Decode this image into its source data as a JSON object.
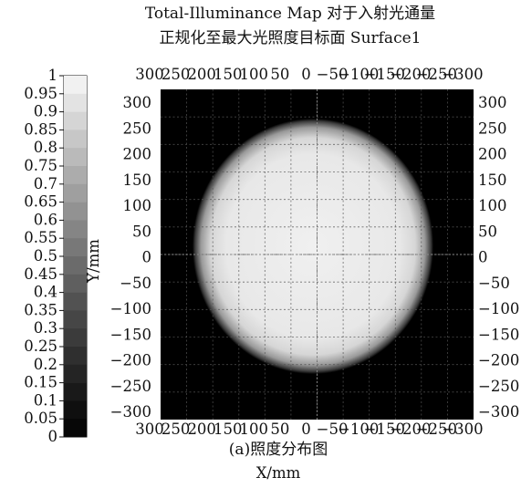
{
  "chart_data": {
    "type": "heatmap",
    "title_lines": [
      "Total-Illuminance Map 对于入射光通量",
      "正规化至最大光照度目标面 Surface1"
    ],
    "caption": "(a)照度分布图",
    "xlabel": "X/mm",
    "ylabel": "Y/mm",
    "x_range": [
      300,
      -300
    ],
    "y_range": [
      -300,
      300
    ],
    "x_ticks": [
      "300",
      "250",
      "200",
      "150",
      "100",
      "50",
      "0",
      "−50",
      "−100",
      "−150",
      "−200",
      "−250",
      "−300"
    ],
    "y_ticks": [
      "300",
      "250",
      "200",
      "150",
      "100",
      "50",
      "0",
      "−50",
      "−100",
      "−150",
      "−200",
      "−250",
      "−300"
    ],
    "colorbar": {
      "min": 0,
      "max": 1,
      "ticks": [
        "1",
        "0.95",
        "0.9",
        "0.85",
        "0.8",
        "0.75",
        "0.7",
        "0.65",
        "0.6",
        "0.55",
        "0.5",
        "0.45",
        "0.4",
        "0.35",
        "0.3",
        "0.25",
        "0.2",
        "0.15",
        "0.1",
        "0.05",
        "0"
      ]
    },
    "spot": {
      "shape": "circle",
      "center": [
        0,
        0
      ],
      "radius_mm": 225,
      "peak_value": 0.95,
      "background_value": 0
    },
    "grid": true,
    "colormap": "grayscale"
  }
}
